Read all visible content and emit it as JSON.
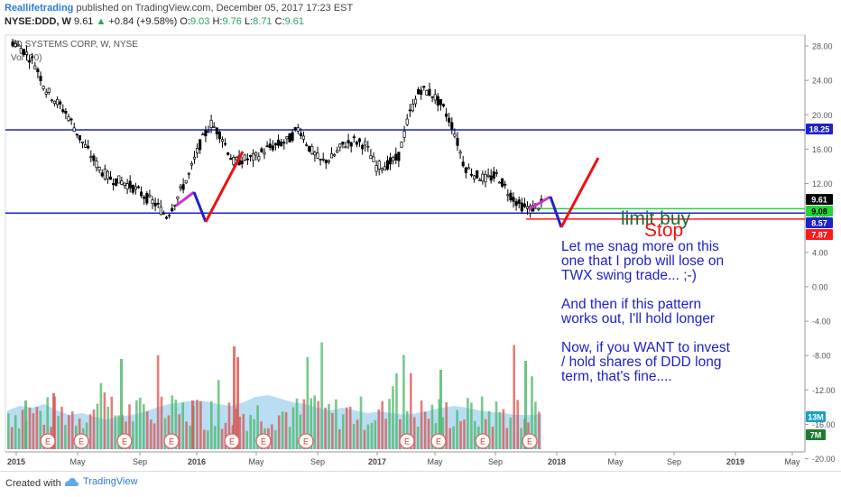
{
  "header": {
    "author": "Reallifetrading",
    "published": " published on TradingView.com, December 05, 2017 17:23 EST",
    "symbol": "NYSE:DDD, W",
    "last": "9.61",
    "change": "+0.84 (+9.58%)",
    "o_label": "O:",
    "o_val": "9.03",
    "h_label": "H:",
    "h_val": "9.76",
    "l_label": "L:",
    "l_val": "8.71",
    "c_label": "C:",
    "c_val": "9.61"
  },
  "footer": {
    "created": "Created with",
    "brand": "TradingView"
  },
  "chart_data": {
    "type": "candlestick",
    "title": "3D SYSTEMS CORP, W, NYSE",
    "volume_label": "Vol (20)",
    "y_ticks": [
      "28.00",
      "24.00",
      "20.00",
      "16.00",
      "12.00",
      "8.00",
      "4.00",
      "0.00",
      "-4.00",
      "-8.00",
      "-12.00",
      "-16.00",
      "-20.00"
    ],
    "y_tick_values": [
      28,
      24,
      20,
      16,
      12,
      8,
      4,
      0,
      -4,
      -8,
      -12,
      -16,
      -20
    ],
    "x_ticks": [
      "2015",
      "May",
      "Sep",
      "2016",
      "May",
      "Sep",
      "2017",
      "May",
      "Sep",
      "2018",
      "May",
      "Sep",
      "2019",
      "May"
    ],
    "x_tick_bold": [
      true,
      false,
      false,
      true,
      false,
      false,
      true,
      false,
      false,
      true,
      false,
      false,
      true,
      false
    ],
    "ylim": [
      -21,
      30
    ],
    "price_close_series": [
      28.5,
      27.5,
      26,
      23,
      21.5,
      20,
      17.5,
      15.5,
      13.5,
      12.5,
      12.2,
      11.5,
      10.5,
      9.6,
      8.2,
      10.5,
      13,
      16.5,
      19,
      17.5,
      14.5,
      14.8,
      15,
      16,
      16.5,
      17,
      18.5,
      16,
      14.5,
      15,
      16.5,
      17,
      16.5,
      14,
      14.2,
      15,
      20,
      23,
      22.5,
      21,
      18.5,
      14,
      13,
      12.5,
      13,
      11,
      9.5,
      9.03,
      9.61
    ],
    "price_labels": [
      {
        "text": "18.25",
        "value": 18.25,
        "color": "#1d23c8"
      },
      {
        "text": "9.61",
        "value": 9.61,
        "color": "#000000"
      },
      {
        "text": "9.08",
        "value": 9.08,
        "color": "#26d43b"
      },
      {
        "text": "8.57",
        "value": 8.57,
        "color": "#1d23c8"
      },
      {
        "text": "7.87",
        "value": 7.87,
        "color": "#ff1a1a"
      }
    ],
    "volume_labels": [
      {
        "text": "13M",
        "color": "#17a2c7"
      },
      {
        "text": "7M",
        "color": "#1f7a2f"
      }
    ],
    "horizontal_lines": [
      {
        "value": 18.25,
        "color": "#1d23c8"
      },
      {
        "value": 8.57,
        "color": "#1d23c8"
      },
      {
        "value": 9.08,
        "color": "#26d43b"
      },
      {
        "value": 7.87,
        "color": "#ff1a1a"
      }
    ],
    "annotations": {
      "limit_buy": "limit buy",
      "stop": "Stop",
      "note_lines": [
        "Let me snag more on this",
        "one that I prob will lose on",
        "TWX swing trade... ;-)",
        "",
        "And then if this pattern",
        "works out, I'll hold longer",
        "",
        "Now, if you WANT to invest",
        "/ hold shares of DDD long",
        "term, that's fine...."
      ]
    },
    "earnings_marker": "E",
    "colors": {
      "up": "#26a65b",
      "down": "#e8453c",
      "line_blue": "#1d23c8",
      "vol_area": "#a8d6f0"
    }
  }
}
